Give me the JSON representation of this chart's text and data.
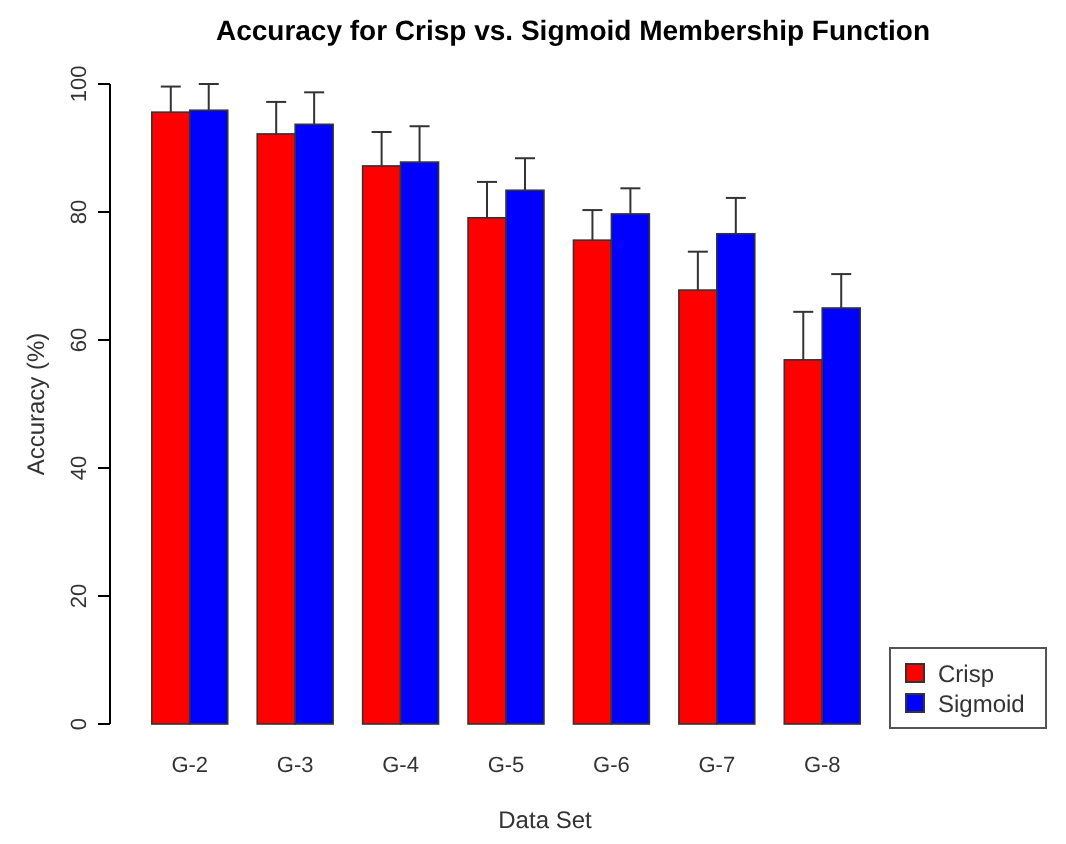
{
  "chart_data": {
    "type": "bar",
    "title": "Accuracy for Crisp vs. Sigmoid Membership Function",
    "xlabel": "Data Set",
    "ylabel": "Accuracy (%)",
    "categories": [
      "G-2",
      "G-3",
      "G-4",
      "G-5",
      "G-6",
      "G-7",
      "G-8"
    ],
    "series": [
      {
        "name": "Crisp",
        "color": "#ff0000",
        "values": [
          95.6,
          92.2,
          87.2,
          79.1,
          75.6,
          67.8,
          56.9
        ],
        "errors": [
          [
            95.6,
            99.6
          ],
          [
            92.2,
            97.2
          ],
          [
            87.2,
            92.5
          ],
          [
            79.1,
            84.7
          ],
          [
            75.6,
            80.3
          ],
          [
            67.8,
            73.8
          ],
          [
            56.9,
            64.4
          ]
        ]
      },
      {
        "name": "Sigmoid",
        "color": "#0000ff",
        "values": [
          95.9,
          93.7,
          87.8,
          83.4,
          79.7,
          76.6,
          65
        ],
        "errors": [
          [
            95.9,
            100
          ],
          [
            93.7,
            98.7
          ],
          [
            87.8,
            93.4
          ],
          [
            83.4,
            88.4
          ],
          [
            79.7,
            83.7
          ],
          [
            76.6,
            82.2
          ],
          [
            65,
            70.3
          ]
        ]
      }
    ],
    "ylim": [
      0,
      100
    ],
    "yticks": [
      0,
      20,
      40,
      60,
      80,
      100
    ],
    "grid": false,
    "legend": "bottom right"
  }
}
